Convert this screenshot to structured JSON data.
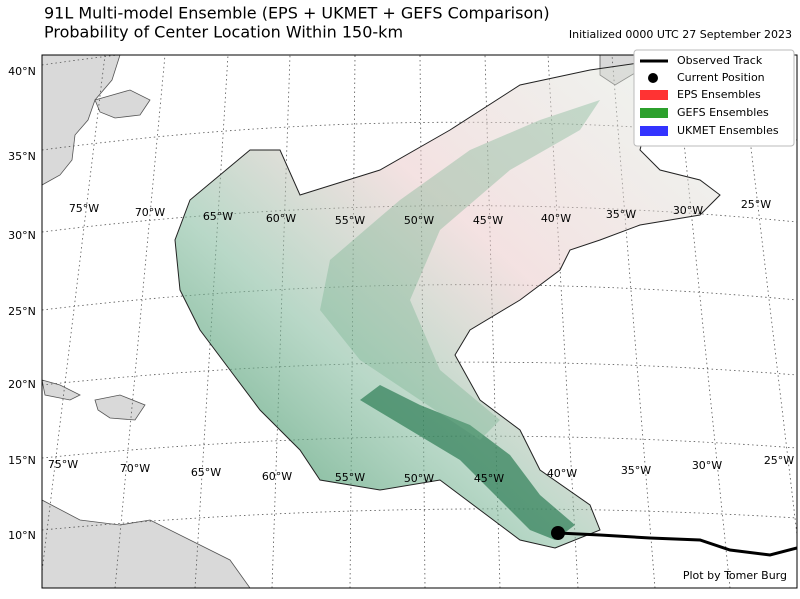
{
  "header": {
    "title": "91L Multi-model Ensemble (EPS + UKMET + GEFS Comparison)",
    "subtitle": "Probability of Center Location Within 150-km",
    "initialized": "Initialized 0000 UTC 27 September 2023"
  },
  "legend": {
    "items": [
      "Observed Track",
      "Current Position",
      "EPS Ensembles",
      "GEFS Ensembles",
      "UKMET Ensembles"
    ]
  },
  "latitude_labels": [
    "40°N",
    "35°N",
    "30°N",
    "25°N",
    "20°N",
    "15°N",
    "10°N"
  ],
  "longitude_labels_upper": [
    "75°W",
    "70°W",
    "65°W",
    "60°W",
    "55°W",
    "50°W",
    "45°W",
    "40°W",
    "35°W",
    "30°W",
    "25°W"
  ],
  "longitude_labels_lower": [
    "75°W",
    "70°W",
    "65°W",
    "60°W",
    "55°W",
    "50°W",
    "45°W",
    "40°W",
    "35°W",
    "30°W",
    "25°W"
  ],
  "credit": "Plot by Tomer Burg"
}
